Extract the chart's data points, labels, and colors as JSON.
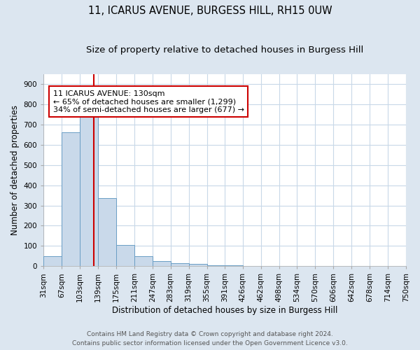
{
  "title": "11, ICARUS AVENUE, BURGESS HILL, RH15 0UW",
  "subtitle": "Size of property relative to detached houses in Burgess Hill",
  "xlabel": "Distribution of detached houses by size in Burgess Hill",
  "ylabel": "Number of detached properties",
  "bin_edges": [
    31,
    67,
    103,
    139,
    175,
    211,
    247,
    283,
    319,
    355,
    391,
    426,
    462,
    498,
    534,
    570,
    606,
    642,
    678,
    714,
    750
  ],
  "bar_heights": [
    50,
    660,
    750,
    335,
    105,
    50,
    25,
    15,
    10,
    5,
    5,
    0,
    0,
    0,
    0,
    0,
    0,
    0,
    0,
    0
  ],
  "bar_color": "#c9d9ea",
  "bar_edge_color": "#6a9ec5",
  "bar_edge_width": 0.7,
  "red_line_x": 130,
  "red_line_color": "#cc0000",
  "annotation_text": "11 ICARUS AVENUE: 130sqm\n← 65% of detached houses are smaller (1,299)\n34% of semi-detached houses are larger (677) →",
  "annotation_box_color": "white",
  "annotation_box_edge": "#cc0000",
  "ylim": [
    0,
    950
  ],
  "yticks": [
    0,
    100,
    200,
    300,
    400,
    500,
    600,
    700,
    800,
    900
  ],
  "plot_bg_color": "white",
  "fig_bg_color": "#dce6f0",
  "grid_color": "#c8d8e8",
  "footer_line1": "Contains HM Land Registry data © Crown copyright and database right 2024.",
  "footer_line2": "Contains public sector information licensed under the Open Government Licence v3.0.",
  "title_fontsize": 10.5,
  "subtitle_fontsize": 9.5,
  "axis_label_fontsize": 8.5,
  "tick_fontsize": 7.5,
  "annotation_fontsize": 8,
  "footer_fontsize": 6.5
}
